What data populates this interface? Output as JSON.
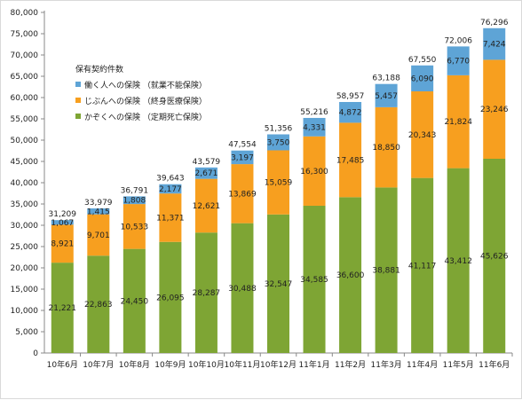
{
  "chart_data": {
    "type": "bar",
    "stacked": true,
    "legend_title": "保有契約件数",
    "legend_position": "top-left",
    "categories": [
      "10年6月",
      "10年7月",
      "10年8月",
      "10年9月",
      "10年10月",
      "10年11月",
      "10年12月",
      "11年1月",
      "11年2月",
      "11年3月",
      "11年4月",
      "11年5月",
      "11年6月"
    ],
    "series": [
      {
        "name": "かぞくへの保険 （定期死亡保険）",
        "color": "#7ea534",
        "values": [
          21221,
          22863,
          24450,
          26095,
          28287,
          30488,
          32547,
          34585,
          36600,
          38881,
          41117,
          43412,
          45626
        ]
      },
      {
        "name": "じぶんへの保険 （終身医療保険）",
        "color": "#f79f1f",
        "values": [
          8921,
          9701,
          10533,
          11371,
          12621,
          13869,
          15059,
          16300,
          17485,
          18850,
          20343,
          21824,
          23246
        ]
      },
      {
        "name": "働く人への保険 （就業不能保険）",
        "color": "#5ea4d6",
        "values": [
          1067,
          1415,
          1808,
          2177,
          2671,
          3197,
          3750,
          4331,
          4872,
          5457,
          6090,
          6770,
          7424
        ]
      }
    ],
    "totals": [
      31209,
      33979,
      36791,
      39643,
      43579,
      47554,
      51356,
      55216,
      58957,
      63188,
      67550,
      72006,
      76296
    ],
    "ylim": [
      0,
      80000
    ],
    "ytick_step": 5000,
    "grid": false
  }
}
